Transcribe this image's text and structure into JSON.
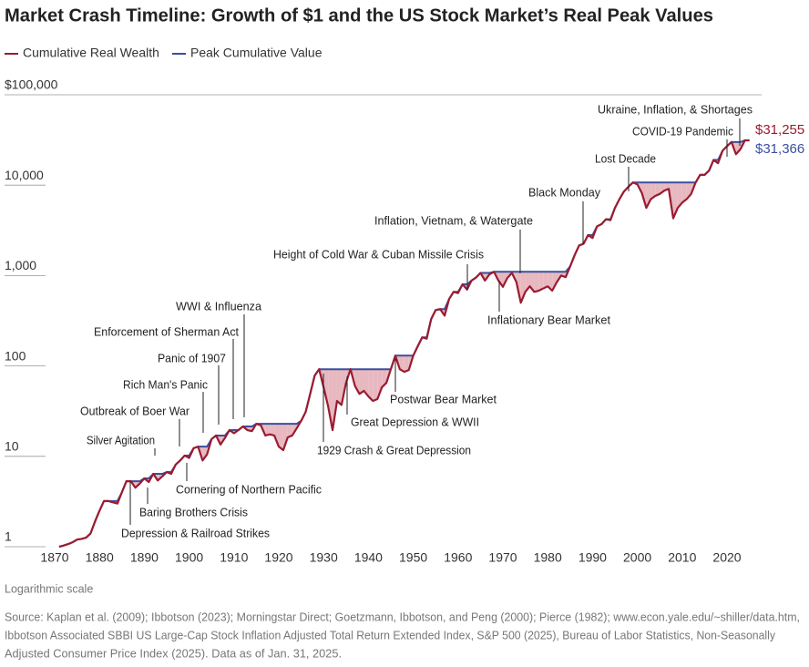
{
  "chart_data": {
    "type": "line",
    "title": "Market Crash Timeline: Growth of $1 and the US Stock Market’s Real Peak Values",
    "log_scale": true,
    "xlim": [
      1865,
      2030
    ],
    "xticks": [
      1870,
      1880,
      1890,
      1900,
      1910,
      1920,
      1930,
      1940,
      1950,
      1960,
      1970,
      1980,
      1990,
      2000,
      2010,
      2020
    ],
    "ylim": [
      1,
      100000
    ],
    "yticks": [
      {
        "value": 100000,
        "label": "$100,000"
      },
      {
        "value": 10000,
        "label": "10,000"
      },
      {
        "value": 1000,
        "label": "1,000"
      },
      100,
      10,
      1
    ],
    "shade_color": "#e7b8bf",
    "x": [
      1871,
      1872,
      1873,
      1874,
      1875,
      1876,
      1877,
      1878,
      1879,
      1880,
      1881,
      1882,
      1883,
      1884,
      1885,
      1886,
      1887,
      1888,
      1889,
      1890,
      1891,
      1892,
      1893,
      1894,
      1895,
      1896,
      1897,
      1898,
      1899,
      1900,
      1901,
      1902,
      1903,
      1904,
      1905,
      1906,
      1907,
      1908,
      1909,
      1910,
      1911,
      1912,
      1913,
      1914,
      1915,
      1916,
      1917,
      1918,
      1919,
      1920,
      1921,
      1922,
      1923,
      1924,
      1925,
      1926,
      1927,
      1928,
      1929,
      1930,
      1931,
      1932,
      1933,
      1934,
      1935,
      1936,
      1937,
      1938,
      1939,
      1940,
      1941,
      1942,
      1943,
      1944,
      1945,
      1946,
      1947,
      1948,
      1949,
      1950,
      1951,
      1952,
      1953,
      1954,
      1955,
      1956,
      1957,
      1958,
      1959,
      1960,
      1961,
      1962,
      1963,
      1964,
      1965,
      1966,
      1967,
      1968,
      1969,
      1970,
      1971,
      1972,
      1973,
      1974,
      1975,
      1976,
      1977,
      1978,
      1979,
      1980,
      1981,
      1982,
      1983,
      1984,
      1985,
      1986,
      1987,
      1988,
      1989,
      1990,
      1991,
      1992,
      1993,
      1994,
      1995,
      1996,
      1997,
      1998,
      1999,
      2000,
      2001,
      2002,
      2003,
      2004,
      2005,
      2006,
      2007,
      2008,
      2009,
      2010,
      2011,
      2012,
      2013,
      2014,
      2015,
      2016,
      2017,
      2018,
      2019,
      2020,
      2021,
      2022,
      2023,
      2024,
      2025
    ],
    "series": [
      {
        "name": "Cumulative Real Wealth",
        "color": "#9b1b30",
        "values": [
          1.0,
          1.03,
          1.07,
          1.12,
          1.2,
          1.22,
          1.26,
          1.4,
          1.9,
          2.5,
          3.2,
          3.2,
          3.1,
          3.0,
          4.0,
          5.3,
          5.3,
          4.5,
          5.0,
          5.7,
          5.2,
          6.4,
          5.4,
          6.0,
          6.7,
          6.4,
          8.1,
          9.0,
          10.2,
          9.6,
          12.3,
          12.8,
          9.0,
          10.5,
          15.5,
          17.0,
          13.5,
          16.0,
          19.5,
          18.0,
          19.5,
          21.4,
          19.5,
          19.0,
          22.9,
          22.0,
          17.0,
          17.5,
          17.0,
          12.8,
          11.7,
          16.2,
          17.0,
          20.4,
          24.7,
          31,
          49,
          78,
          92,
          58,
          36,
          19.5,
          41,
          37,
          65,
          92,
          60,
          49,
          53,
          46,
          41,
          43,
          58,
          65,
          92,
          130,
          92,
          86,
          90,
          130,
          165,
          207,
          200,
          330,
          415,
          425,
          360,
          550,
          660,
          640,
          800,
          700,
          880,
          950,
          1070,
          880,
          1030,
          1100,
          880,
          750,
          940,
          1070,
          850,
          500,
          660,
          760,
          660,
          680,
          720,
          760,
          680,
          840,
          1000,
          960,
          1260,
          1680,
          2150,
          2250,
          2800,
          2600,
          3500,
          3700,
          4200,
          4100,
          5600,
          7000,
          8500,
          9600,
          10700,
          10200,
          8200,
          5600,
          7000,
          7600,
          8000,
          8700,
          9100,
          4300,
          5600,
          6400,
          7000,
          8000,
          10700,
          13000,
          13000,
          14500,
          19000,
          17500,
          24000,
          27000,
          30000,
          22000,
          25000,
          31366,
          31255
        ],
        "value_labels": [
          null,
          null,
          null,
          null,
          null,
          null,
          null,
          null,
          null,
          null,
          null,
          null,
          null,
          null,
          null,
          null,
          null,
          null,
          null,
          null,
          null,
          null,
          null,
          null,
          null,
          null,
          null,
          null,
          null,
          null,
          null,
          null,
          null,
          null,
          null,
          null,
          null,
          null,
          null,
          null,
          null,
          null,
          null,
          null,
          null,
          null,
          null,
          null,
          null,
          null,
          null,
          null,
          null,
          null,
          null,
          null,
          null,
          null,
          null,
          null,
          null,
          null,
          null,
          null,
          null,
          null,
          null,
          null,
          null,
          null,
          null,
          null,
          null,
          null,
          null,
          null,
          null,
          null,
          null,
          null,
          null,
          null,
          null,
          null,
          null,
          null,
          null,
          null,
          null,
          null,
          null,
          null,
          null,
          null,
          null,
          null,
          null,
          null,
          null,
          null,
          null,
          null,
          null,
          null,
          null,
          null,
          null,
          null,
          null,
          null,
          null,
          null,
          null,
          null,
          null,
          null,
          null,
          null,
          null,
          null,
          null,
          null,
          null,
          null,
          null,
          null,
          null,
          null,
          null,
          null,
          null,
          null,
          null,
          null,
          null,
          null,
          null,
          null,
          null,
          null,
          null,
          null,
          null,
          null,
          null,
          null,
          null,
          null,
          null,
          null,
          null,
          null,
          null,
          null,
          "$31,255"
        ]
      },
      {
        "name": "Peak Cumulative Value",
        "color": "#3a4fa0",
        "values": [
          1.0,
          1.03,
          1.07,
          1.12,
          1.2,
          1.22,
          1.26,
          1.4,
          1.9,
          2.5,
          3.2,
          3.2,
          3.2,
          3.2,
          4.0,
          5.3,
          5.3,
          5.3,
          5.3,
          5.7,
          5.7,
          6.4,
          6.4,
          6.4,
          6.7,
          6.7,
          8.1,
          9.0,
          10.2,
          10.2,
          12.3,
          12.8,
          12.8,
          12.8,
          15.5,
          17.0,
          17.0,
          17.0,
          19.5,
          19.5,
          19.5,
          21.4,
          21.4,
          21.4,
          22.9,
          22.9,
          22.9,
          22.9,
          22.9,
          22.9,
          22.9,
          22.9,
          22.9,
          22.9,
          24.7,
          31,
          49,
          78,
          92,
          92,
          92,
          92,
          92,
          92,
          92,
          92,
          92,
          92,
          92,
          92,
          92,
          92,
          92,
          92,
          92,
          130,
          130,
          130,
          130,
          130,
          165,
          207,
          207,
          330,
          415,
          425,
          425,
          550,
          660,
          660,
          800,
          800,
          880,
          950,
          1070,
          1070,
          1070,
          1100,
          1100,
          1100,
          1100,
          1100,
          1100,
          1100,
          1100,
          1100,
          1100,
          1100,
          1100,
          1100,
          1100,
          1100,
          1100,
          1100,
          1260,
          1680,
          2150,
          2250,
          2800,
          2800,
          3500,
          3700,
          4200,
          4200,
          5600,
          7000,
          8500,
          9600,
          10700,
          10700,
          10700,
          10700,
          10700,
          10700,
          10700,
          10700,
          10700,
          10700,
          10700,
          10700,
          10700,
          10700,
          10700,
          13000,
          13000,
          14500,
          19000,
          19000,
          24000,
          27000,
          30000,
          30000,
          30000,
          31366,
          31366
        ],
        "value_labels": [
          null,
          null,
          null,
          null,
          null,
          null,
          null,
          null,
          null,
          null,
          null,
          null,
          null,
          null,
          null,
          null,
          null,
          null,
          null,
          null,
          null,
          null,
          null,
          null,
          null,
          null,
          null,
          null,
          null,
          null,
          null,
          null,
          null,
          null,
          null,
          null,
          null,
          null,
          null,
          null,
          null,
          null,
          null,
          null,
          null,
          null,
          null,
          null,
          null,
          null,
          null,
          null,
          null,
          null,
          null,
          null,
          null,
          null,
          null,
          null,
          null,
          null,
          null,
          null,
          null,
          null,
          null,
          null,
          null,
          null,
          null,
          null,
          null,
          null,
          null,
          null,
          null,
          null,
          null,
          null,
          null,
          null,
          null,
          null,
          null,
          null,
          null,
          null,
          null,
          null,
          null,
          null,
          null,
          null,
          null,
          null,
          null,
          null,
          null,
          null,
          null,
          null,
          null,
          null,
          null,
          null,
          null,
          null,
          null,
          null,
          null,
          null,
          null,
          null,
          null,
          null,
          null,
          null,
          null,
          null,
          null,
          null,
          null,
          null,
          null,
          null,
          null,
          null,
          null,
          null,
          null,
          null,
          null,
          null,
          null,
          null,
          null,
          null,
          null,
          null,
          null,
          null,
          null,
          null,
          null,
          null,
          null,
          null,
          null,
          null,
          null,
          null,
          null,
          null,
          "$31,366"
        ]
      }
    ],
    "annotations": [
      "Silver Agitation",
      "Outbreak of Boer War",
      "Rich Man's Panic",
      "Panic of 1907",
      "Enforcement of Sherman Act",
      "WWI & Influenza",
      "Cornering of Northern Pacific",
      "Baring Brothers Crisis",
      "Depression & Railroad Strikes",
      "1929 Crash & Great Depression",
      "Great Depression & WWII",
      "Postwar Bear Market",
      "Height of Cold War & Cuban Missile Crisis",
      "Inflation, Vietnam, & Watergate",
      "Inflationary Bear Market",
      "Black Monday",
      "Lost Decade",
      "COVID-19 Pandemic",
      "Ukraine, Inflation, & Shortages"
    ],
    "scale_note": "Logarithmic scale",
    "source": [
      "Source: Kaplan et al. (2009); Ibbotson (2023); Morningstar Direct; Goetzmann, Ibbotson, and Peng (2000); Pierce (1982); www.econ.yale.edu/~shiller/data.htm,",
      "Ibbotson Associated SBBI US Large-Cap Stock Inflation Adjusted Total Return Extended Index, S&P 500 (2025), Bureau of Labor Statistics, Non-Seasonally",
      "Adjusted Consumer Price Index (2025). Data as of Jan. 31, 2025."
    ]
  }
}
